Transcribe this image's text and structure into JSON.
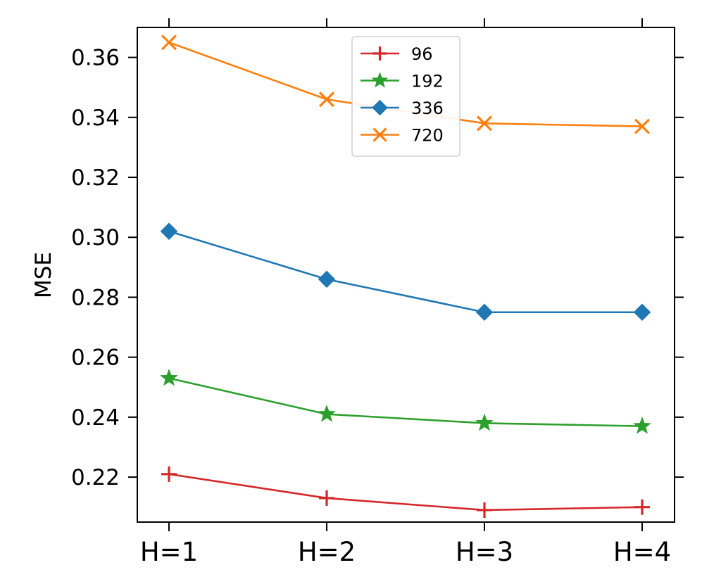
{
  "chart_data": {
    "type": "line",
    "title": "",
    "xlabel": "",
    "ylabel": "MSE",
    "categories": [
      "H=1",
      "H=2",
      "H=3",
      "H=4"
    ],
    "ylim": [
      0.205,
      0.37
    ],
    "yticks": [
      0.22,
      0.24,
      0.26,
      0.28,
      0.3,
      0.32,
      0.34,
      0.36
    ],
    "ytick_labels": [
      "0.22",
      "0.24",
      "0.26",
      "0.28",
      "0.30",
      "0.32",
      "0.34",
      "0.36"
    ],
    "grid": false,
    "legend_position": "top-center",
    "series": [
      {
        "name": "96",
        "color": "#d62728",
        "marker": "plus",
        "values": [
          0.221,
          0.213,
          0.209,
          0.21
        ]
      },
      {
        "name": "192",
        "color": "#2ca02c",
        "marker": "star",
        "values": [
          0.253,
          0.241,
          0.238,
          0.237
        ]
      },
      {
        "name": "336",
        "color": "#1f77b4",
        "marker": "diamond",
        "values": [
          0.302,
          0.286,
          0.275,
          0.275
        ]
      },
      {
        "name": "720",
        "color": "#ff7f0e",
        "marker": "x",
        "values": [
          0.365,
          0.346,
          0.338,
          0.337
        ]
      }
    ]
  }
}
